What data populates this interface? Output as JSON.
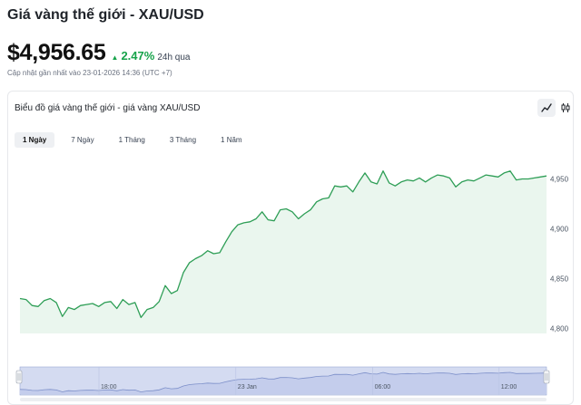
{
  "header": {
    "title": "Giá vàng thế giới - XAU/USD",
    "price": "$4,956.65",
    "change_arrow": "▲",
    "change_pct": "2.47%",
    "change_period": "24h qua",
    "updated": "Cập nhật gần nhất vào 23-01-2026 14:36 (UTC +7)"
  },
  "card": {
    "title": "Biểu đồ giá vàng thế giới - giá vàng XAU/USD",
    "tools": {
      "line": "line-chart-icon",
      "candle": "candlestick-icon"
    },
    "ranges": [
      "1 Ngày",
      "7 Ngày",
      "1 Tháng",
      "3 Tháng",
      "1 Năm"
    ],
    "active_range": "1 Ngày"
  },
  "colors": {
    "line": "#2e9e56",
    "fill": "#eaf6ee",
    "nav_fill": "#c9d3ef",
    "nav_line": "#7c8fc9",
    "up": "#16a34a"
  },
  "chart_data": {
    "type": "area",
    "y_ticks": [
      4800,
      4850,
      4900,
      4950
    ],
    "y_tick_labels": [
      "4,800",
      "4,850",
      "4,900",
      "4,950"
    ],
    "ylim": [
      4795,
      4985
    ],
    "nav_ticks": [
      "18:00",
      "23 Jan",
      "06:00",
      "12:00"
    ],
    "values": [
      4830,
      4829,
      4823,
      4822,
      4828,
      4830,
      4826,
      4812,
      4821,
      4819,
      4823,
      4824,
      4825,
      4822,
      4826,
      4827,
      4820,
      4829,
      4824,
      4826,
      4811,
      4819,
      4821,
      4827,
      4843,
      4835,
      4838,
      4856,
      4866,
      4870,
      4873,
      4878,
      4875,
      4876,
      4887,
      4897,
      4904,
      4906,
      4907,
      4910,
      4917,
      4909,
      4908,
      4919,
      4920,
      4917,
      4910,
      4915,
      4919,
      4927,
      4930,
      4931,
      4943,
      4942,
      4943,
      4937,
      4947,
      4956,
      4947,
      4945,
      4958,
      4946,
      4943,
      4947,
      4949,
      4948,
      4951,
      4947,
      4951,
      4954,
      4953,
      4951,
      4942,
      4947,
      4949,
      4948,
      4951,
      4954,
      4953,
      4952,
      4956,
      4958,
      4949,
      4950,
      4950,
      4951,
      4952,
      4953
    ]
  }
}
